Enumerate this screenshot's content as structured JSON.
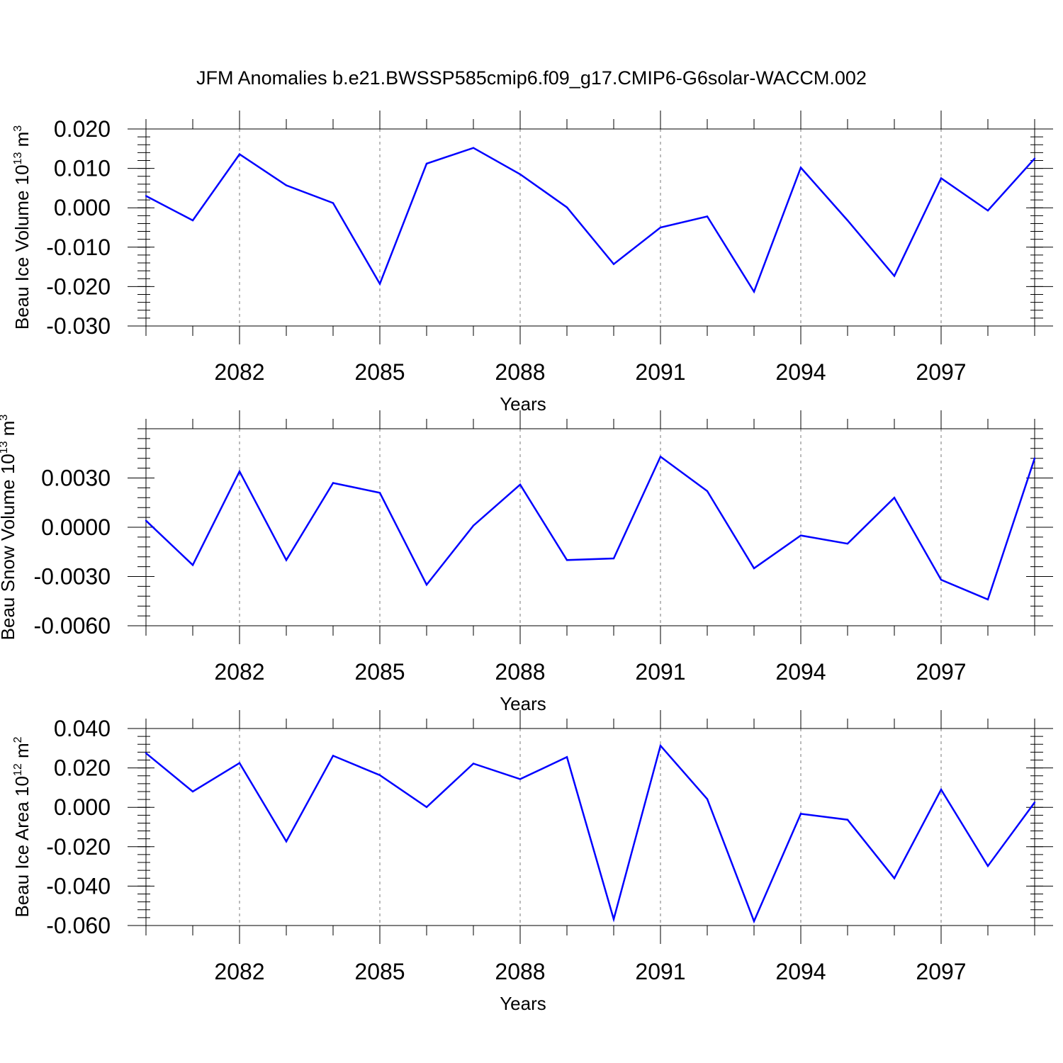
{
  "figure": {
    "title": "JFM Anomalies b.e21.BWSSP585cmip6.f09_g17.CMIP6-G6solar-WACCM.002",
    "line_color": "#0000ff",
    "grid_color": "#777777",
    "axis_color": "#000000"
  },
  "chart_data": [
    {
      "type": "line",
      "ylabel": "Beau Ice Volume 10",
      "ylabel_exponent": "13",
      "ylabel_unit": " m",
      "ylabel_unit_exponent": "3",
      "xlabel": "Years",
      "xlim": [
        2080,
        2099
      ],
      "ylim": [
        -0.03,
        0.02
      ],
      "yticks": [
        0.02,
        0.01,
        0.0,
        -0.01,
        -0.02,
        -0.03
      ],
      "ytick_labels": [
        "0.020",
        "0.010",
        "0.000",
        "-0.010",
        "-0.020",
        "-0.030"
      ],
      "xticks": [
        2082,
        2085,
        2088,
        2091,
        2094,
        2097
      ],
      "xtick_labels": [
        "2082",
        "2085",
        "2088",
        "2091",
        "2094",
        "2097"
      ],
      "grid_x_major": true,
      "x": [
        2080,
        2081,
        2082,
        2083,
        2084,
        2085,
        2086,
        2087,
        2088,
        2089,
        2090,
        2091,
        2092,
        2093,
        2094,
        2095,
        2096,
        2097,
        2098,
        2099
      ],
      "series": [
        {
          "values": [
            0.003,
            -0.0032,
            0.0136,
            0.0057,
            0.0012,
            -0.0193,
            0.0112,
            0.0152,
            0.0085,
            0.0001,
            -0.0143,
            -0.005,
            -0.0022,
            -0.0213,
            0.0102,
            -0.0032,
            -0.0173,
            0.0075,
            -0.0007,
            0.0125
          ]
        }
      ]
    },
    {
      "type": "line",
      "ylabel": "Beau Snow Volume 10",
      "ylabel_exponent": "13",
      "ylabel_unit": " m",
      "ylabel_unit_exponent": "3",
      "xlabel": "Years",
      "xlim": [
        2080,
        2099
      ],
      "ylim": [
        -0.006,
        0.006
      ],
      "yticks": [
        0.003,
        0.0,
        -0.003,
        -0.006
      ],
      "ytick_labels": [
        "0.0030",
        "0.0000",
        "-0.0030",
        "-0.0060"
      ],
      "xticks": [
        2082,
        2085,
        2088,
        2091,
        2094,
        2097
      ],
      "xtick_labels": [
        "2082",
        "2085",
        "2088",
        "2091",
        "2094",
        "2097"
      ],
      "grid_x_major": true,
      "x": [
        2080,
        2081,
        2082,
        2083,
        2084,
        2085,
        2086,
        2087,
        2088,
        2089,
        2090,
        2091,
        2092,
        2093,
        2094,
        2095,
        2096,
        2097,
        2098,
        2099
      ],
      "series": [
        {
          "values": [
            0.0004,
            -0.0023,
            0.0034,
            -0.002,
            0.0027,
            0.0021,
            -0.0035,
            0.0001,
            0.0026,
            -0.002,
            -0.0019,
            0.0043,
            0.0022,
            -0.0025,
            -0.0005,
            -0.001,
            0.0018,
            -0.0032,
            -0.0044,
            0.0042
          ]
        }
      ]
    },
    {
      "type": "line",
      "ylabel": "Beau Ice Area 10",
      "ylabel_exponent": "12",
      "ylabel_unit": " m",
      "ylabel_unit_exponent": "2",
      "xlabel": "Years",
      "xlim": [
        2080,
        2099
      ],
      "ylim": [
        -0.06,
        0.04
      ],
      "yticks": [
        0.04,
        0.02,
        0.0,
        -0.02,
        -0.04,
        -0.06
      ],
      "ytick_labels": [
        "0.040",
        "0.020",
        "0.000",
        "-0.020",
        "-0.040",
        "-0.060"
      ],
      "xticks": [
        2082,
        2085,
        2088,
        2091,
        2094,
        2097
      ],
      "xtick_labels": [
        "2082",
        "2085",
        "2088",
        "2091",
        "2094",
        "2097"
      ],
      "grid_x_major": true,
      "x": [
        2080,
        2081,
        2082,
        2083,
        2084,
        2085,
        2086,
        2087,
        2088,
        2089,
        2090,
        2091,
        2092,
        2093,
        2094,
        2095,
        2096,
        2097,
        2098,
        2099
      ],
      "series": [
        {
          "values": [
            0.0275,
            0.008,
            0.0225,
            -0.0173,
            0.0262,
            0.0163,
            0.0001,
            0.0222,
            0.0143,
            0.0255,
            -0.0568,
            0.0313,
            0.0042,
            -0.0578,
            -0.0033,
            -0.0063,
            -0.036,
            0.009,
            -0.0298,
            0.0025
          ]
        }
      ]
    }
  ]
}
